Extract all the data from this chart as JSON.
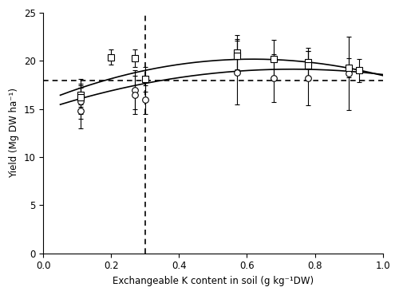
{
  "cecilia_x": [
    0.11,
    0.11,
    0.11,
    0.27,
    0.27,
    0.3,
    0.57,
    0.68,
    0.78,
    0.9
  ],
  "cecilia_y": [
    16.3,
    15.8,
    14.8,
    17.0,
    16.5,
    16.0,
    18.8,
    18.2,
    18.2,
    18.7
  ],
  "cecilia_yerr": [
    1.8,
    1.8,
    1.8,
    2.0,
    2.0,
    1.5,
    3.3,
    2.5,
    2.8,
    3.8
  ],
  "yume_x": [
    0.11,
    0.11,
    0.2,
    0.27,
    0.3,
    0.57,
    0.57,
    0.68,
    0.78,
    0.78,
    0.9,
    0.93
  ],
  "yume_y": [
    16.5,
    16.2,
    20.4,
    20.3,
    18.1,
    20.9,
    20.5,
    20.2,
    19.9,
    19.5,
    19.3,
    19.0
  ],
  "yume_yerr": [
    1.0,
    1.0,
    0.8,
    0.9,
    1.3,
    1.8,
    1.8,
    2.0,
    1.5,
    1.5,
    1.0,
    1.2
  ],
  "cecilia_coeffs": [
    -7.843,
    11.52,
    14.91
  ],
  "yume_coeffs": [
    -11.64,
    14.37,
    15.75
  ],
  "vline_x": 0.3,
  "hline_y": 18.0,
  "xlim": [
    0.0,
    1.0
  ],
  "ylim": [
    0,
    25
  ],
  "yticks": [
    0,
    5,
    10,
    15,
    20,
    25
  ],
  "xticks": [
    0.0,
    0.2,
    0.4,
    0.6,
    0.8,
    1.0
  ],
  "xlabel": "Exchangeable K content in soil (g kg⁻¹DW)",
  "ylabel": "Yield (Mg DW ha⁻¹)",
  "background_color": "#ffffff",
  "line_color": "#000000",
  "marker_color": "#000000",
  "curve_xstart": 0.05,
  "curve_xend": 1.0
}
